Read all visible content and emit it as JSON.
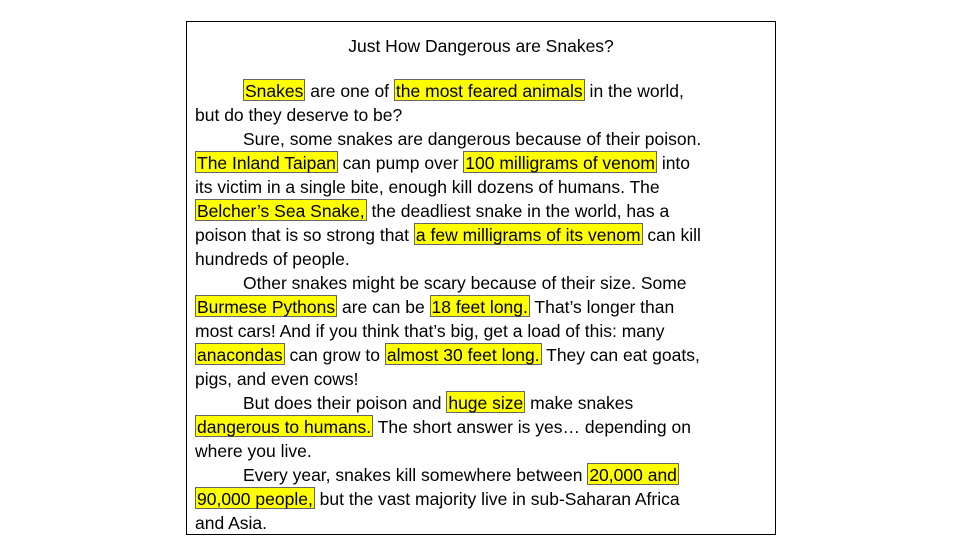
{
  "document": {
    "title": "Just How Dangerous are Snakes?",
    "lines": [
      [
        {
          "t": "Snakes",
          "h": true
        },
        {
          "t": " are one of "
        },
        {
          "t": "the most feared animals",
          "h": true
        },
        {
          "t": " in the world,"
        }
      ],
      [
        {
          "t": "but do they deserve to be?"
        }
      ],
      [
        {
          "t": "Sure, some snakes are dangerous because of their poison."
        }
      ],
      [
        {
          "t": "The Inland Taipan",
          "h": true
        },
        {
          "t": " can pump over "
        },
        {
          "t": "100 milligrams of venom",
          "h": true
        },
        {
          "t": " into"
        }
      ],
      [
        {
          "t": "its victim in a single bite, enough kill dozens of humans.  The"
        }
      ],
      [
        {
          "t": "Belcher’s Sea Snake,",
          "h": true
        },
        {
          "t": " the deadliest snake in the world, has a"
        }
      ],
      [
        {
          "t": "poison that is so strong that "
        },
        {
          "t": "a few milligrams of its venom",
          "h": true
        },
        {
          "t": " can kill"
        }
      ],
      [
        {
          "t": "hundreds of people."
        }
      ],
      [
        {
          "t": "Other snakes might be scary because of their size.  Some"
        }
      ],
      [
        {
          "t": "Burmese Pythons",
          "h": true
        },
        {
          "t": " are can be "
        },
        {
          "t": "18 feet long.",
          "h": true
        },
        {
          "t": "  That’s longer than"
        }
      ],
      [
        {
          "t": "most cars!  And if you think that’s big, get a load of this: many"
        }
      ],
      [
        {
          "t": "anacondas",
          "h": true
        },
        {
          "t": " can grow to "
        },
        {
          "t": "almost 30 feet long.",
          "h": true
        },
        {
          "t": "  They can eat goats,"
        }
      ],
      [
        {
          "t": "pigs, and even cows!"
        }
      ],
      [
        {
          "t": "But does their poison and "
        },
        {
          "t": "huge size",
          "h": true
        },
        {
          "t": " make snakes"
        }
      ],
      [
        {
          "t": "dangerous to humans.",
          "h": true
        },
        {
          "t": "  The short answer is yes… depending on"
        }
      ],
      [
        {
          "t": "where you live."
        }
      ],
      [
        {
          "t": "Every year, snakes kill somewhere between "
        },
        {
          "t": "20,000 and",
          "h": true
        }
      ],
      [
        {
          "t": "90,000 people,",
          "h": true
        },
        {
          "t": " but the vast majority live in sub-Saharan Africa"
        }
      ],
      [
        {
          "t": "and Asia."
        }
      ]
    ],
    "indented_lines": [
      0,
      2,
      8,
      13,
      16
    ],
    "highlight_color": "#ffff00"
  }
}
